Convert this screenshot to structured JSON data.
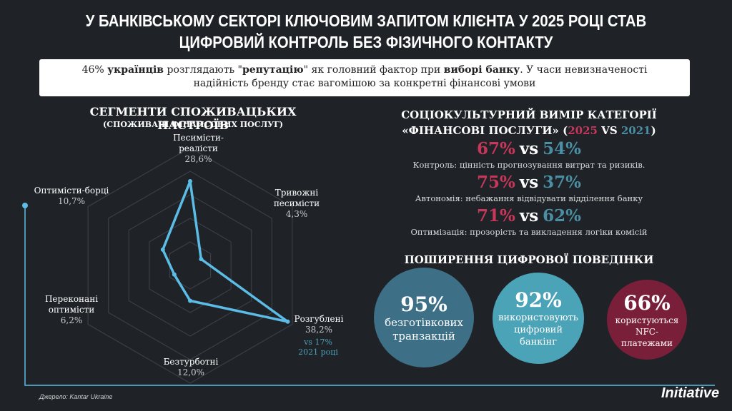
{
  "header": {
    "title_lines": [
      "У БАНКІВСЬКОМУ СЕКТОРІ КЛЮЧОВИМ ЗАПИТОМ КЛІЄНТА У 2025 РОЦІ СТАВ",
      "ЦИФРОВИЙ КОНТРОЛЬ БЕЗ ФІЗИЧНОГО КОНТАКТУ"
    ]
  },
  "intro": [
    {
      "text": "46% ",
      "bold": false
    },
    {
      "text": "українців",
      "bold": true
    },
    {
      "text": " розглядають \"",
      "bold": false
    },
    {
      "text": "репутацію",
      "bold": true
    },
    {
      "text": "\" як головний фактор при ",
      "bold": false
    },
    {
      "text": "виборі банку",
      "bold": true
    },
    {
      "text": ". У часи невизначеності надійність бренду стає вагомішою за конкретні фінансові умови",
      "bold": false
    }
  ],
  "chart_data": {
    "type": "radar",
    "title": "СЕГМЕНТИ СПОЖИВАЦЬКИХ НАСТРОЇВ",
    "subtitle": "(СПОЖИВАЧІ ФІНАНСОВИХ ПОСЛУГ)",
    "categories": [
      "Песимісти-реалісти",
      "Тривожні песимісти",
      "Розгублені",
      "Безтурботні",
      "Переконані оптимісти",
      "Оптимісти-борці"
    ],
    "values": [
      28.6,
      4.3,
      38.2,
      12.0,
      6.2,
      10.7
    ],
    "value_labels": [
      "28,6%",
      "4,3%",
      "38,2%",
      "12,0%",
      "6,2%",
      "10,7%"
    ],
    "color": "#5bbde6",
    "rlim": [
      0,
      40
    ],
    "rticks": [
      8,
      16,
      24,
      32,
      40
    ],
    "annotations": [
      "vs 17%",
      "2021 році"
    ]
  },
  "culture": {
    "title_parts": [
      {
        "text": "СОЦІОКУЛЬТУРНИЙ ВИМІР КАТЕГОРІЇ «ФІНАНСОВІ ПОСЛУГИ» (",
        "color": "#ffffff"
      },
      {
        "text": "2025",
        "color": "#c8375a"
      },
      {
        "text": " VS ",
        "color": "#ffffff"
      },
      {
        "text": "2021",
        "color": "#4a8fa3"
      },
      {
        "text": ")",
        "color": "#ffffff"
      }
    ],
    "items": [
      {
        "a": "67%",
        "vs": "vs",
        "b": "54%",
        "label": "Контроль: цінність прогнозування витрат та ризиків."
      },
      {
        "a": "75%",
        "vs": "vs",
        "b": "37%",
        "label": "Автономія: небажання відвідувати відділення банку"
      },
      {
        "a": "71%",
        "vs": "vs",
        "b": "62%",
        "label": "Оптимізація: прозорість та викладення логіки комісій"
      }
    ]
  },
  "digital": {
    "title": "ПОШИРЕННЯ ЦИФРОВОЇ ПОВЕДІНКИ",
    "circles": [
      {
        "value": "95%",
        "label": "безготівкових транзакцій",
        "color": "#3d6f86"
      },
      {
        "value": "92%",
        "label": "використовують цифровий банкінг",
        "color": "#4ba3b8"
      },
      {
        "value": "66%",
        "label": "користуються NFC-платежами",
        "color": "#7a1f3a"
      }
    ]
  },
  "footer": {
    "source": "Джерело: Kantar Ukraine",
    "logo": "Initiative"
  }
}
